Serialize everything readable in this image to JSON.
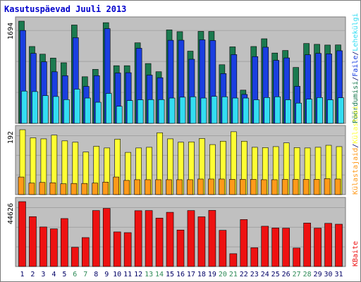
{
  "title": "Kasutuspäevad Juuli 2013",
  "colors": {
    "frame": "#7a7a7a",
    "plot_bg": "#c0c0c0",
    "title": "#0000cc",
    "pages": "#1b7a4f",
    "files": "#1a3fe0",
    "hits": "#33ddf2",
    "visits": "#ffff33",
    "unique_visits": "#ff9a1a",
    "kbytes": "#ee1111",
    "weekend_day": "#2e8b57",
    "weekday": "#000066"
  },
  "chart_data": [
    {
      "type": "bar",
      "panel": "top",
      "ytick": "1694",
      "ylim": [
        0,
        1694
      ],
      "categories": [
        "1",
        "2",
        "3",
        "4",
        "5",
        "6",
        "7",
        "8",
        "9",
        "10",
        "11",
        "12",
        "13",
        "14",
        "15",
        "16",
        "17",
        "18",
        "19",
        "20",
        "21",
        "22",
        "23",
        "24",
        "25",
        "26",
        "27",
        "28",
        "29",
        "30",
        "31"
      ],
      "legend_labels": [
        "Pöördumisi",
        "Faile",
        "Lehekülgi"
      ],
      "series": [
        {
          "name": "Pöördumisi",
          "values": [
            1694,
            1274,
            1147,
            1082,
            1005,
            1630,
            773,
            895,
            1669,
            956,
            956,
            1335,
            992,
            856,
            1549,
            1520,
            1197,
            1525,
            1524,
            972,
            1268,
            551,
            1274,
            1402,
            1166,
            1208,
            927,
            1324,
            1310,
            1298,
            1300
          ]
        },
        {
          "name": "Faile",
          "values": [
            1540,
            1160,
            1020,
            855,
            790,
            1420,
            613,
            790,
            1570,
            835,
            840,
            1245,
            800,
            757,
            1377,
            1378,
            1063,
            1385,
            1373,
            825,
            1140,
            480,
            1107,
            1262,
            1045,
            1085,
            615,
            1137,
            1160,
            1152,
            1204
          ]
        },
        {
          "name": "Lehekülgi",
          "values": [
            535,
            527,
            460,
            445,
            394,
            567,
            420,
            350,
            496,
            283,
            378,
            391,
            394,
            394,
            420,
            434,
            441,
            420,
            448,
            441,
            420,
            420,
            391,
            428,
            441,
            391,
            336,
            401,
            428,
            391,
            424
          ]
        }
      ]
    },
    {
      "type": "bar",
      "panel": "middle",
      "ytick": "192",
      "ylim": [
        0,
        192
      ],
      "categories": [
        "1",
        "2",
        "3",
        "4",
        "5",
        "6",
        "7",
        "8",
        "9",
        "10",
        "11",
        "12",
        "13",
        "14",
        "15",
        "16",
        "17",
        "18",
        "19",
        "20",
        "21",
        "22",
        "23",
        "24",
        "25",
        "26",
        "27",
        "28",
        "29",
        "30",
        "31"
      ],
      "legend_labels": [
        "Külastajaid",
        "Külastusi"
      ],
      "series": [
        {
          "name": "Külastusi",
          "values": [
            192,
            168,
            165,
            176,
            159,
            155,
            126,
            143,
            138,
            164,
            125,
            138,
            140,
            183,
            165,
            155,
            156,
            166,
            148,
            158,
            186,
            158,
            140,
            139,
            142,
            153,
            139,
            138,
            140,
            146,
            142
          ]
        },
        {
          "name": "Külastajaid",
          "values": [
            52,
            34,
            36,
            35,
            32,
            33,
            33,
            34,
            37,
            52,
            42,
            44,
            44,
            44,
            44,
            44,
            44,
            46,
            46,
            46,
            45,
            45,
            45,
            44,
            44,
            45,
            45,
            45,
            45,
            47,
            46
          ]
        }
      ]
    },
    {
      "type": "bar",
      "panel": "bottom",
      "ytick": "44626",
      "ylim": [
        0,
        44626
      ],
      "categories": [
        "1",
        "2",
        "3",
        "4",
        "5",
        "6",
        "7",
        "8",
        "9",
        "10",
        "11",
        "12",
        "13",
        "14",
        "15",
        "16",
        "17",
        "18",
        "19",
        "20",
        "21",
        "22",
        "23",
        "24",
        "25",
        "26",
        "27",
        "28",
        "29",
        "30",
        "31"
      ],
      "legend_labels": [
        "KBaite"
      ],
      "series": [
        {
          "name": "KBaite",
          "values": [
            44626,
            34315,
            27200,
            25900,
            33000,
            13200,
            19900,
            38500,
            40000,
            23800,
            23300,
            38400,
            38500,
            33300,
            37300,
            25100,
            38500,
            34200,
            38600,
            24900,
            8800,
            32300,
            12900,
            27700,
            26500,
            26400,
            12700,
            29900,
            26400,
            29700,
            29100
          ]
        }
      ]
    }
  ],
  "x_axis": {
    "days": [
      "1",
      "2",
      "3",
      "4",
      "5",
      "6",
      "7",
      "8",
      "9",
      "10",
      "11",
      "12",
      "13",
      "14",
      "15",
      "16",
      "17",
      "18",
      "19",
      "20",
      "21",
      "22",
      "23",
      "24",
      "25",
      "26",
      "27",
      "28",
      "29",
      "30",
      "31"
    ],
    "weekend_days": [
      6,
      7,
      13,
      14,
      20,
      21,
      27,
      28
    ]
  },
  "legend": {
    "top": [
      "Pöördumisi",
      "/",
      "Faile",
      "/",
      "Lehekülgi"
    ],
    "middle": [
      "Külastajaid",
      "/",
      "Külastusi"
    ],
    "bottom": [
      "KBaite"
    ]
  }
}
